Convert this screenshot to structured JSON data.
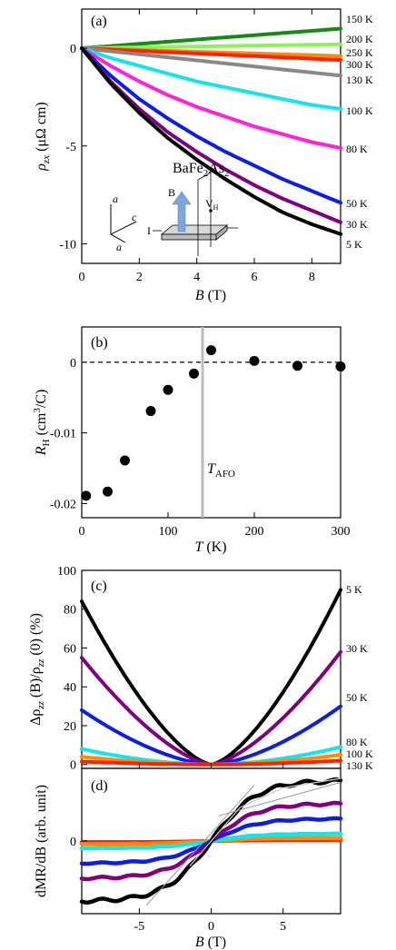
{
  "colors": {
    "5K": "#000000",
    "30K": "#800080",
    "50K": "#0a1ee6",
    "80K": "#ff22dd",
    "100K": "#11e5f0",
    "130K": "#888888",
    "200K": "#8ff05a",
    "250K": "#ff8c00",
    "300K": "#ff2000",
    "150K": "#138a13",
    "point": "#000000",
    "afo_line": "#bbbbbb"
  },
  "chart_data": [
    {
      "panel": "(a)",
      "type": "line",
      "xlabel": "B (T)",
      "ylabel": "ρ_zx (μΩ cm)",
      "xlim": [
        0,
        9
      ],
      "ylim": [
        -11,
        2
      ],
      "xticks": [
        "0",
        "2",
        "4",
        "6",
        "8"
      ],
      "yticks": [
        "0",
        "-5",
        "-10"
      ],
      "annotation": "BaFe2As2",
      "inset": {
        "labels": [
          "a",
          "c",
          "a",
          "B",
          "V",
          "H",
          "I"
        ]
      },
      "series": [
        {
          "name": "150 K",
          "color_key": "150K",
          "x": [
            0,
            9
          ],
          "y": [
            0,
            1.0
          ]
        },
        {
          "name": "200 K",
          "color_key": "200K",
          "x": [
            0,
            9
          ],
          "y": [
            0,
            0.2
          ]
        },
        {
          "name": "250 K",
          "color_key": "250K",
          "x": [
            0,
            9
          ],
          "y": [
            0,
            -0.4
          ]
        },
        {
          "name": "300 K",
          "color_key": "300K",
          "x": [
            0,
            9
          ],
          "y": [
            0,
            -0.6
          ]
        },
        {
          "name": "130 K",
          "color_key": "130K",
          "x": [
            0,
            9
          ],
          "y": [
            0,
            -1.4
          ]
        },
        {
          "name": "100 K",
          "color_key": "100K",
          "x": [
            0,
            1,
            2,
            3,
            4,
            5,
            6,
            7,
            8,
            9
          ],
          "y": [
            0,
            -0.5,
            -0.9,
            -1.3,
            -1.7,
            -2.0,
            -2.3,
            -2.6,
            -2.9,
            -3.1
          ]
        },
        {
          "name": "80 K",
          "color_key": "80K",
          "x": [
            0,
            1,
            2,
            3,
            4,
            5,
            6,
            7,
            8,
            9
          ],
          "y": [
            0,
            -0.9,
            -1.7,
            -2.4,
            -3.0,
            -3.5,
            -4.0,
            -4.4,
            -4.8,
            -5.1
          ]
        },
        {
          "name": "50 K",
          "color_key": "50K",
          "x": [
            0,
            1,
            2,
            3,
            4,
            5,
            6,
            7,
            8,
            9
          ],
          "y": [
            0,
            -1.4,
            -2.6,
            -3.6,
            -4.5,
            -5.3,
            -6.0,
            -6.7,
            -7.3,
            -7.9
          ]
        },
        {
          "name": "30 K",
          "color_key": "30K",
          "x": [
            0,
            1,
            2,
            3,
            4,
            5,
            6,
            7,
            8,
            9
          ],
          "y": [
            0,
            -1.7,
            -3.1,
            -4.3,
            -5.3,
            -6.2,
            -7.0,
            -7.7,
            -8.3,
            -8.9
          ]
        },
        {
          "name": "5 K",
          "color_key": "5K",
          "x": [
            0,
            1,
            2,
            3,
            4,
            5,
            6,
            7,
            8,
            9
          ],
          "y": [
            0,
            -1.8,
            -3.3,
            -4.6,
            -5.7,
            -6.7,
            -7.6,
            -8.4,
            -9.0,
            -9.5
          ]
        }
      ]
    },
    {
      "panel": "(b)",
      "type": "scatter",
      "xlabel": "T (K)",
      "ylabel": "R_H (cm³/C)",
      "xlim": [
        0,
        300
      ],
      "ylim": [
        -0.022,
        0.005
      ],
      "xticks": [
        "0",
        "100",
        "200",
        "300"
      ],
      "yticks": [
        "0",
        "-0.01",
        "-0.02"
      ],
      "annotation": "T_AFO",
      "afo_T": 140,
      "x": [
        5,
        30,
        50,
        80,
        100,
        130,
        150,
        200,
        250,
        300
      ],
      "y": [
        -0.0189,
        -0.0183,
        -0.0139,
        -0.0069,
        -0.0039,
        -0.0016,
        0.0017,
        0.0002,
        -0.0005,
        -0.0006
      ]
    },
    {
      "panel": "(c)",
      "type": "line",
      "xlabel": "",
      "ylabel": "Δρ_zz (B)/ρ_zz (0) (%)",
      "xlim": [
        -9,
        9
      ],
      "ylim": [
        -2,
        100
      ],
      "yticks": [
        "0",
        "20",
        "40",
        "60",
        "80",
        "100"
      ],
      "series": [
        {
          "name": "5 K",
          "color_key": "5K",
          "end_values": [
            84,
            90
          ],
          "exponent": 1.5
        },
        {
          "name": "30 K",
          "color_key": "30K",
          "end_values": [
            55,
            58
          ],
          "exponent": 1.5
        },
        {
          "name": "50 K",
          "color_key": "50K",
          "end_values": [
            28,
            30
          ],
          "exponent": 1.6
        },
        {
          "name": "80 K",
          "color_key": "100K",
          "end_values": [
            8,
            9
          ],
          "exponent": 1.8
        },
        {
          "name": "100 K",
          "color_key": "250K",
          "end_values": [
            4,
            5
          ],
          "exponent": 1.8
        },
        {
          "name": "130 K",
          "color_key": "300K",
          "end_values": [
            1.5,
            2
          ],
          "exponent": 1.8
        }
      ]
    },
    {
      "panel": "(d)",
      "type": "line",
      "xlabel": "B (T)",
      "ylabel": "dMR/dB (arb. unit)",
      "xlim": [
        -9,
        9
      ],
      "ylim": [
        -1.3,
        1.3
      ],
      "xticks": [
        "-5",
        "0",
        "5"
      ],
      "yticks": [
        "0"
      ],
      "series": [
        {
          "name": "5 K",
          "color_key": "5K",
          "amp": 1.0
        },
        {
          "name": "30 K",
          "color_key": "30K",
          "amp": 0.62
        },
        {
          "name": "50 K",
          "color_key": "50K",
          "amp": 0.37
        },
        {
          "name": "80 K",
          "color_key": "100K",
          "amp": 0.12
        },
        {
          "name": "100 K",
          "color_key": "250K",
          "amp": 0.05
        },
        {
          "name": "130 K",
          "color_key": "300K",
          "amp": 0.02
        }
      ]
    }
  ],
  "labels": {
    "a_panel": "(a)",
    "b_panel": "(b)",
    "c_panel": "(c)",
    "d_panel": "(d)",
    "a_formula_main": "BaFe",
    "a_formula_sub1": "2",
    "a_formula_mid": "As",
    "a_formula_sub2": "2",
    "b_afo_main": "T",
    "b_afo_sub": "AFO",
    "a_ylab_rho": "ρ",
    "a_ylab_sub": "zx",
    "a_ylab_unit": " (μΩ cm)",
    "b_ylab_main": "R",
    "b_ylab_sub": "H",
    "b_ylab_unit": " (cm",
    "b_ylab_sup": "3",
    "b_ylab_end": "/C)",
    "c_ylab_1": "Δρ",
    "c_ylab_2": "zz",
    "c_ylab_3": " (B)/ρ",
    "c_ylab_4": "zz",
    "c_ylab_5": " (0) (%)",
    "d_ylab": "dMR/dB (arb. unit)",
    "a_xlab_main": "B",
    "a_xlab_unit": " (T)",
    "b_xlab_main": "T",
    "b_xlab_unit": " (K)",
    "d_xlab_main": "B",
    "d_xlab_unit": " (T)"
  }
}
